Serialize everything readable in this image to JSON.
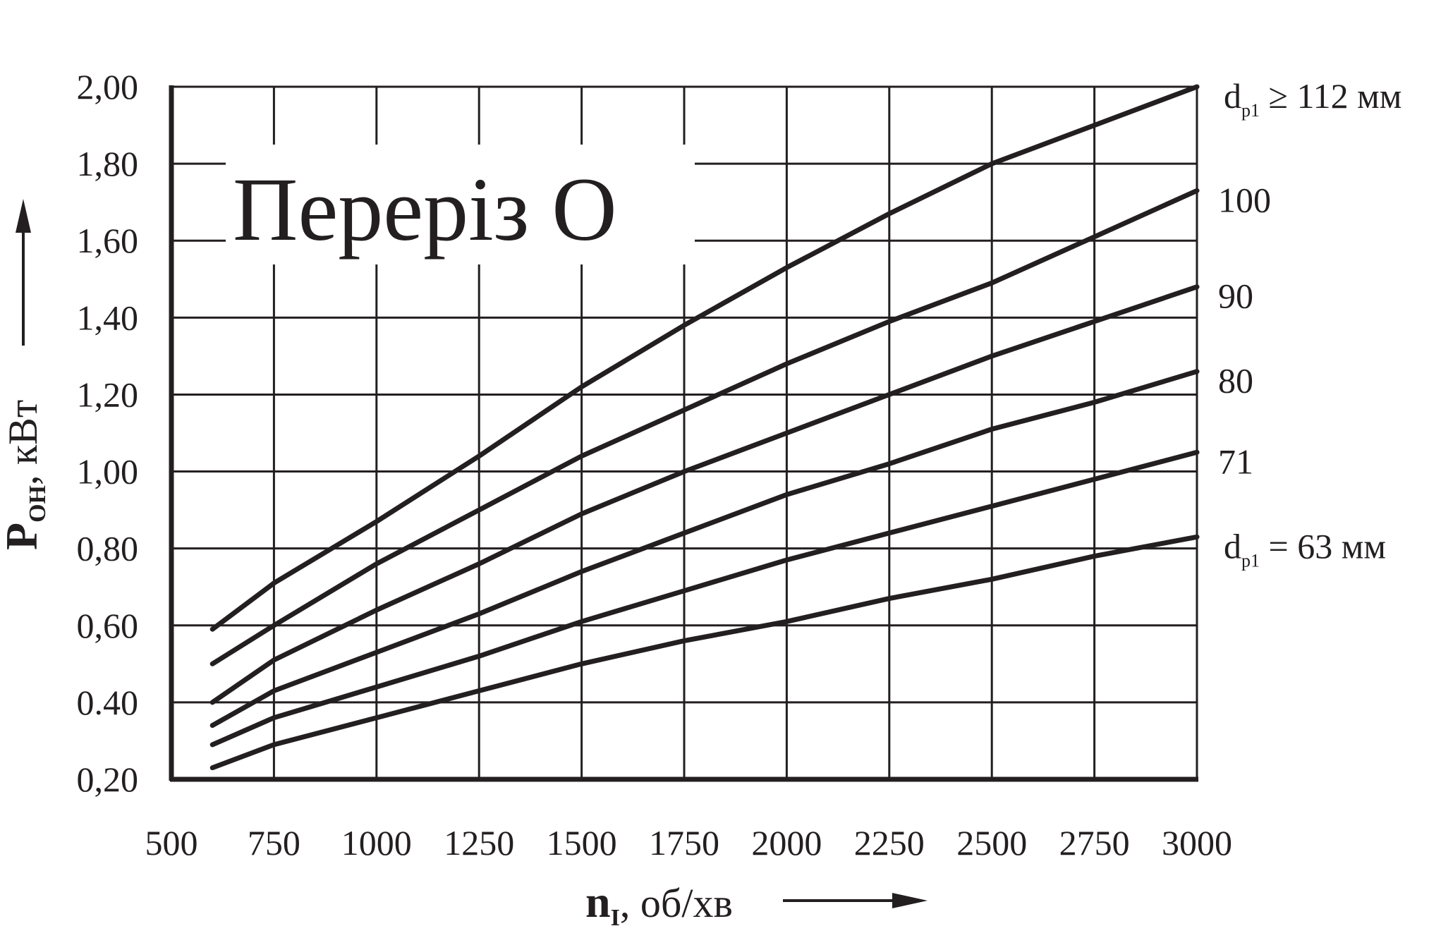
{
  "chart_data": {
    "type": "line",
    "title": "Переріз О",
    "xlabel": {
      "symbol": "n",
      "sub": "I",
      "rest": ", об/хв"
    },
    "ylabel": {
      "symbol": "P",
      "sub": "ОН",
      "rest": ", кВт"
    },
    "xlim": [
      500,
      3000
    ],
    "ylim": [
      0.2,
      2.0
    ],
    "x_ticks": [
      500,
      750,
      1000,
      1250,
      1500,
      1750,
      2000,
      2250,
      2500,
      2750,
      3000
    ],
    "x_tick_labels": [
      "500",
      "750",
      "1000",
      "1250",
      "1500",
      "1750",
      "2000",
      "2250",
      "2500",
      "2750",
      "3000"
    ],
    "y_ticks": [
      0.2,
      0.4,
      0.6,
      0.8,
      1.0,
      1.2,
      1.4,
      1.6,
      1.8,
      2.0
    ],
    "y_tick_labels": [
      "0,20",
      "0.40",
      "0,60",
      "0,80",
      "1,00",
      "1,20",
      "1,40",
      "1,60",
      "1,80",
      "2,00"
    ],
    "grid": true,
    "x": [
      600,
      750,
      1000,
      1250,
      1500,
      1750,
      2000,
      2250,
      2500,
      2750,
      3000
    ],
    "series": [
      {
        "label": {
          "d": "d",
          "sub": "р1",
          "text": " ≥ 112 мм"
        },
        "values": [
          0.59,
          0.71,
          0.87,
          1.04,
          1.22,
          1.38,
          1.53,
          1.67,
          1.8,
          1.9,
          2.0
        ]
      },
      {
        "label": {
          "d": "",
          "sub": "",
          "text": "100"
        },
        "values": [
          0.5,
          0.6,
          0.76,
          0.9,
          1.04,
          1.16,
          1.28,
          1.39,
          1.49,
          1.61,
          1.73
        ]
      },
      {
        "label": {
          "d": "",
          "sub": "",
          "text": "90"
        },
        "values": [
          0.4,
          0.51,
          0.64,
          0.76,
          0.89,
          1.0,
          1.1,
          1.2,
          1.3,
          1.39,
          1.48
        ]
      },
      {
        "label": {
          "d": "",
          "sub": "",
          "text": "80"
        },
        "values": [
          0.34,
          0.43,
          0.53,
          0.63,
          0.74,
          0.84,
          0.94,
          1.02,
          1.11,
          1.18,
          1.26
        ]
      },
      {
        "label": {
          "d": "",
          "sub": "",
          "text": "71"
        },
        "values": [
          0.29,
          0.36,
          0.44,
          0.52,
          0.61,
          0.69,
          0.77,
          0.84,
          0.91,
          0.98,
          1.05
        ]
      },
      {
        "label": {
          "d": "d",
          "sub": "р1",
          "text": " = 63 мм"
        },
        "values": [
          0.23,
          0.29,
          0.36,
          0.43,
          0.5,
          0.56,
          0.61,
          0.67,
          0.72,
          0.78,
          0.83
        ]
      }
    ]
  }
}
